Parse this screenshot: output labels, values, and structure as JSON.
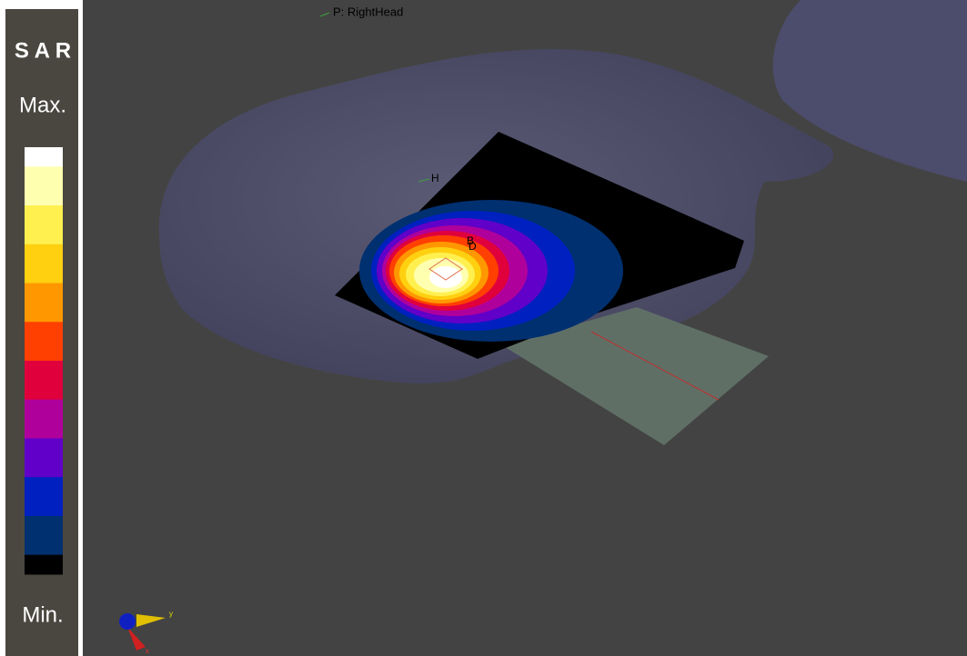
{
  "panel": {
    "title": "S A R",
    "max_label": "Max.",
    "min_label": "Min.",
    "colorbar": [
      "#ffffff",
      "#ffffb0",
      "#fff050",
      "#ffd010",
      "#ff9800",
      "#ff4000",
      "#e0003c",
      "#b0009c",
      "#6000c8",
      "#0020c0",
      "#003070",
      "#000000"
    ]
  },
  "scene": {
    "phantom_label": "P: RightHead",
    "markers": [
      "H",
      "B",
      "D"
    ],
    "axes": [
      "y",
      "x"
    ]
  }
}
